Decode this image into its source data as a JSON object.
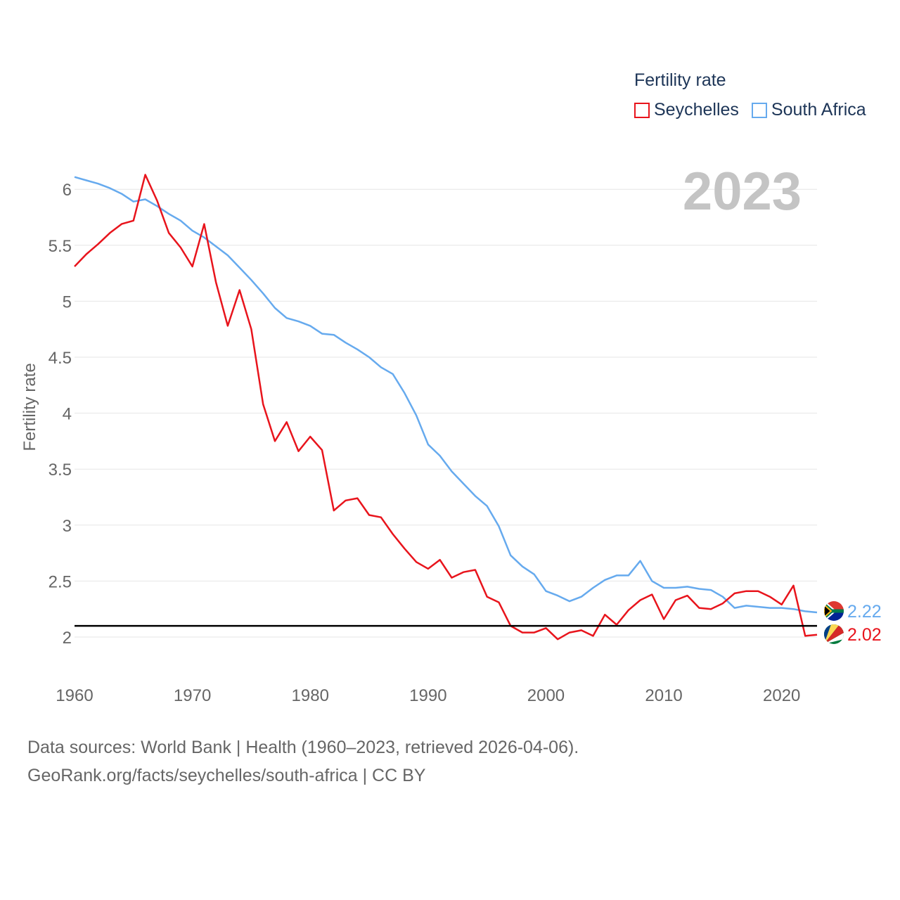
{
  "legend": {
    "title": "Fertility rate",
    "items": [
      {
        "label": "Seychelles",
        "color": "#e8141c"
      },
      {
        "label": "South Africa",
        "color": "#66aaee"
      }
    ]
  },
  "sources": {
    "line1": "Data sources: World Bank | Health (1960–2023, retrieved 2026-04-06).",
    "line2": "GeoRank.org/facts/seychelles/south-africa | CC BY"
  },
  "chart_data": {
    "type": "line",
    "title": "Fertility rate",
    "year_label": "2023",
    "xlabel": "",
    "ylabel": "Fertility rate",
    "xlim": [
      1960,
      2023
    ],
    "ylim": [
      1.8,
      6.15
    ],
    "x_ticks": [
      1960,
      1970,
      1980,
      1990,
      2000,
      2010,
      2020
    ],
    "y_ticks": [
      2,
      2.5,
      3,
      3.5,
      4,
      4.5,
      5,
      5.5,
      6
    ],
    "y_tick_labels": [
      "2",
      "2.5",
      "3",
      "3.5",
      "4",
      "4.5",
      "5",
      "5.5",
      "6"
    ],
    "grid": true,
    "reference_line": {
      "y": 2.1,
      "color": "#000000"
    },
    "x": [
      1960,
      1961,
      1962,
      1963,
      1964,
      1965,
      1966,
      1967,
      1968,
      1969,
      1970,
      1971,
      1972,
      1973,
      1974,
      1975,
      1976,
      1977,
      1978,
      1979,
      1980,
      1981,
      1982,
      1983,
      1984,
      1985,
      1986,
      1987,
      1988,
      1989,
      1990,
      1991,
      1992,
      1993,
      1994,
      1995,
      1996,
      1997,
      1998,
      1999,
      2000,
      2001,
      2002,
      2003,
      2004,
      2005,
      2006,
      2007,
      2008,
      2009,
      2010,
      2011,
      2012,
      2013,
      2014,
      2015,
      2016,
      2017,
      2018,
      2019,
      2020,
      2021,
      2022,
      2023
    ],
    "series": [
      {
        "name": "Seychelles",
        "color": "#e8141c",
        "end_label": "2.02",
        "values": [
          5.31,
          5.42,
          5.51,
          5.61,
          5.69,
          5.72,
          6.13,
          5.9,
          5.61,
          5.48,
          5.31,
          5.69,
          5.17,
          4.78,
          5.1,
          4.75,
          4.08,
          3.75,
          3.92,
          3.66,
          3.79,
          3.67,
          3.13,
          3.22,
          3.24,
          3.09,
          3.07,
          2.92,
          2.79,
          2.67,
          2.61,
          2.69,
          2.53,
          2.58,
          2.6,
          2.36,
          2.31,
          2.1,
          2.04,
          2.04,
          2.08,
          1.98,
          2.04,
          2.06,
          2.01,
          2.2,
          2.11,
          2.24,
          2.33,
          2.38,
          2.16,
          2.33,
          2.37,
          2.26,
          2.25,
          2.3,
          2.39,
          2.41,
          2.41,
          2.36,
          2.29,
          2.46,
          2.01,
          2.02
        ]
      },
      {
        "name": "South Africa",
        "color": "#66aaee",
        "end_label": "2.22",
        "values": [
          6.11,
          6.08,
          6.05,
          6.01,
          5.96,
          5.89,
          5.91,
          5.85,
          5.78,
          5.72,
          5.63,
          5.57,
          5.49,
          5.41,
          5.3,
          5.19,
          5.07,
          4.94,
          4.85,
          4.82,
          4.78,
          4.71,
          4.7,
          4.63,
          4.57,
          4.5,
          4.41,
          4.35,
          4.18,
          3.98,
          3.72,
          3.62,
          3.48,
          3.37,
          3.26,
          3.17,
          2.99,
          2.73,
          2.63,
          2.56,
          2.41,
          2.37,
          2.32,
          2.36,
          2.44,
          2.51,
          2.55,
          2.55,
          2.68,
          2.5,
          2.44,
          2.44,
          2.45,
          2.43,
          2.42,
          2.36,
          2.26,
          2.28,
          2.27,
          2.26,
          2.26,
          2.25,
          2.23,
          2.22
        ]
      }
    ]
  }
}
